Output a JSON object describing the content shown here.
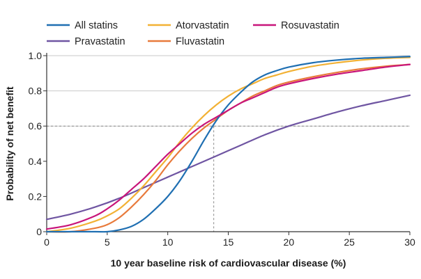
{
  "chart_data": {
    "type": "line",
    "title": "",
    "xlabel": "10 year baseline risk of cardiovascular disease (%)",
    "ylabel": "Probability of net benefit",
    "xlim": [
      0,
      30
    ],
    "ylim": [
      0,
      1.0
    ],
    "xticks": [
      0,
      5,
      10,
      15,
      20,
      25,
      30
    ],
    "yticks": [
      0,
      0.2,
      0.4,
      0.6,
      0.8,
      1.0
    ],
    "xtick_labels": [
      "0",
      "5",
      "10",
      "15",
      "20",
      "25",
      "30"
    ],
    "ytick_labels": [
      "0",
      "0.2",
      "0.4",
      "0.6",
      "0.8",
      "1.0"
    ],
    "gridlines": [
      0.6,
      0.8,
      1.0
    ],
    "reference_lines": {
      "x": 13.8,
      "y": 0.6
    },
    "legend_position": "top",
    "series": [
      {
        "name": "All statins",
        "color": "#1f6fb2",
        "x": [
          0,
          2,
          4,
          5,
          6,
          7,
          8,
          9,
          10,
          11,
          12,
          13,
          14,
          15,
          16,
          17,
          18,
          19,
          20,
          22,
          24,
          26,
          28,
          30
        ],
        "y": [
          0.0,
          0.0,
          0.0,
          0.0,
          0.01,
          0.03,
          0.07,
          0.13,
          0.2,
          0.29,
          0.4,
          0.52,
          0.63,
          0.72,
          0.79,
          0.85,
          0.89,
          0.915,
          0.935,
          0.96,
          0.975,
          0.985,
          0.99,
          0.995
        ]
      },
      {
        "name": "Pravastatin",
        "color": "#6f55a2",
        "x": [
          0,
          2,
          4,
          6,
          8,
          10,
          12,
          14,
          16,
          18,
          20,
          22,
          24,
          26,
          28,
          30
        ],
        "y": [
          0.07,
          0.1,
          0.14,
          0.19,
          0.25,
          0.31,
          0.37,
          0.43,
          0.49,
          0.55,
          0.6,
          0.64,
          0.68,
          0.715,
          0.745,
          0.775
        ]
      },
      {
        "name": "Atorvastatin",
        "color": "#f2b134",
        "x": [
          0,
          2,
          4,
          5,
          6,
          7,
          8,
          9,
          10,
          11,
          12,
          13,
          14,
          15,
          16,
          17,
          18,
          19,
          20,
          22,
          24,
          26,
          28,
          30
        ],
        "y": [
          0.0,
          0.02,
          0.06,
          0.09,
          0.13,
          0.19,
          0.26,
          0.34,
          0.42,
          0.51,
          0.59,
          0.66,
          0.72,
          0.77,
          0.81,
          0.84,
          0.87,
          0.89,
          0.91,
          0.94,
          0.96,
          0.975,
          0.985,
          0.99
        ]
      },
      {
        "name": "Fluvastatin",
        "color": "#e87a3b",
        "x": [
          0,
          2,
          4,
          5,
          6,
          7,
          8,
          9,
          10,
          11,
          12,
          13,
          14,
          15,
          16,
          17,
          18,
          19,
          20,
          22,
          24,
          26,
          28,
          30
        ],
        "y": [
          0.0,
          0.0,
          0.02,
          0.04,
          0.08,
          0.14,
          0.21,
          0.29,
          0.38,
          0.46,
          0.53,
          0.59,
          0.64,
          0.69,
          0.73,
          0.77,
          0.8,
          0.83,
          0.85,
          0.88,
          0.905,
          0.925,
          0.94,
          0.95
        ]
      },
      {
        "name": "Rosuvastatin",
        "color": "#c8157a",
        "x": [
          0,
          2,
          4,
          5,
          6,
          7,
          8,
          9,
          10,
          11,
          12,
          13,
          14,
          15,
          16,
          17,
          18,
          19,
          20,
          22,
          24,
          26,
          28,
          30
        ],
        "y": [
          0.015,
          0.04,
          0.09,
          0.13,
          0.18,
          0.24,
          0.3,
          0.37,
          0.44,
          0.5,
          0.56,
          0.61,
          0.65,
          0.69,
          0.73,
          0.76,
          0.79,
          0.82,
          0.84,
          0.87,
          0.895,
          0.915,
          0.935,
          0.95
        ]
      }
    ]
  }
}
